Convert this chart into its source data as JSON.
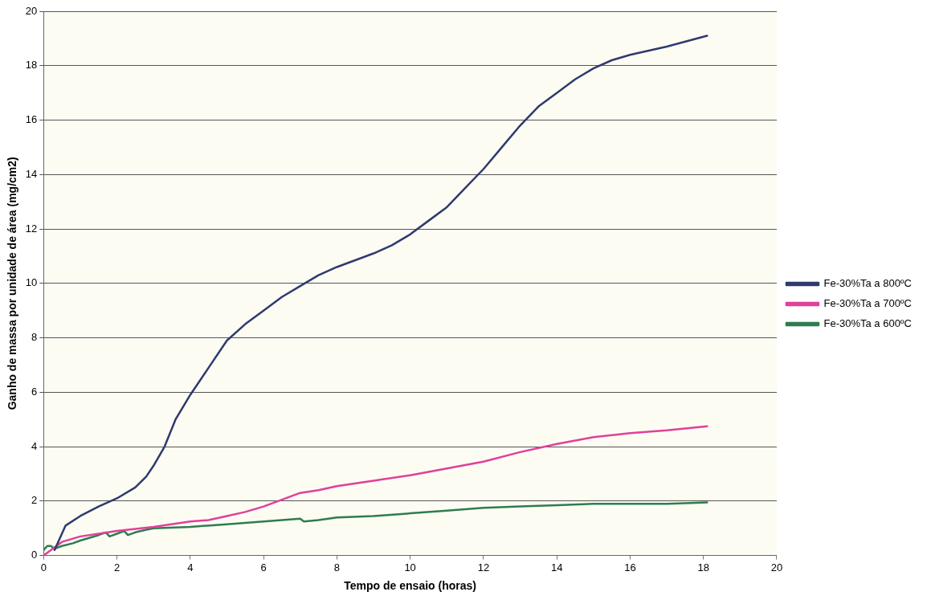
{
  "chart_data": {
    "type": "line",
    "xlabel": "Tempo de ensaio (horas)",
    "ylabel": "Ganho de massa por unidade de área (mg/cm2)",
    "xlim": [
      0,
      20
    ],
    "xticks": [
      0,
      2,
      4,
      6,
      8,
      10,
      12,
      14,
      16,
      18,
      20
    ],
    "ylim": [
      0,
      20
    ],
    "yticks": [
      0,
      2,
      4,
      6,
      8,
      10,
      12,
      14,
      16,
      18,
      20
    ],
    "grid": "y",
    "legend": "right",
    "marker": "none",
    "line_style": "solid",
    "series": [
      {
        "name": "Fe-30%Ta a 800ºC",
        "color": "#2f3a6e",
        "x": [
          0.3,
          0.6,
          1,
          1.5,
          2,
          2.5,
          2.8,
          3,
          3.3,
          3.6,
          4,
          4.5,
          5,
          5.5,
          6,
          6.5,
          7,
          7.5,
          8,
          9,
          9.5,
          10,
          10.5,
          11,
          11.5,
          12,
          12.5,
          13,
          13.5,
          14,
          14.5,
          15,
          15.5,
          16,
          17,
          18.1
        ],
        "values": [
          0.2,
          1.1,
          1.45,
          1.8,
          2.1,
          2.5,
          2.9,
          3.3,
          4.0,
          5.0,
          5.9,
          6.9,
          7.9,
          8.5,
          9.0,
          9.5,
          9.9,
          10.3,
          10.6,
          11.1,
          11.4,
          11.8,
          12.3,
          12.8,
          13.5,
          14.2,
          15.0,
          15.8,
          16.5,
          17.0,
          17.5,
          17.9,
          18.2,
          18.4,
          18.7,
          19.1
        ]
      },
      {
        "name": "Fe-30%Ta a 700ºC",
        "color": "#e0409a",
        "x": [
          0,
          0.3,
          0.5,
          1,
          1.5,
          2,
          3,
          4,
          4.5,
          5,
          5.5,
          6,
          6.5,
          7,
          7.5,
          8,
          9,
          10,
          11,
          12,
          13,
          14,
          15,
          16,
          17,
          18.1
        ],
        "values": [
          0,
          0.3,
          0.5,
          0.7,
          0.8,
          0.9,
          1.05,
          1.25,
          1.3,
          1.45,
          1.6,
          1.8,
          2.05,
          2.3,
          2.4,
          2.55,
          2.75,
          2.95,
          3.2,
          3.45,
          3.8,
          4.1,
          4.35,
          4.5,
          4.6,
          4.75
        ]
      },
      {
        "name": "Fe-30%Ta a 600ºC",
        "color": "#2e7d4f",
        "x": [
          0,
          0.1,
          0.2,
          0.3,
          0.5,
          0.8,
          1,
          1.5,
          1.7,
          1.8,
          2,
          2.2,
          2.3,
          2.5,
          2.8,
          3,
          4,
          5,
          6,
          7,
          7.1,
          7.5,
          8,
          9,
          10,
          11,
          12,
          13,
          14,
          15,
          16,
          17,
          18.1
        ],
        "values": [
          0.2,
          0.35,
          0.35,
          0.25,
          0.35,
          0.45,
          0.55,
          0.75,
          0.85,
          0.7,
          0.8,
          0.9,
          0.75,
          0.85,
          0.95,
          1.0,
          1.05,
          1.15,
          1.25,
          1.35,
          1.25,
          1.3,
          1.4,
          1.45,
          1.55,
          1.65,
          1.75,
          1.8,
          1.85,
          1.9,
          1.9,
          1.9,
          1.95
        ]
      }
    ]
  }
}
